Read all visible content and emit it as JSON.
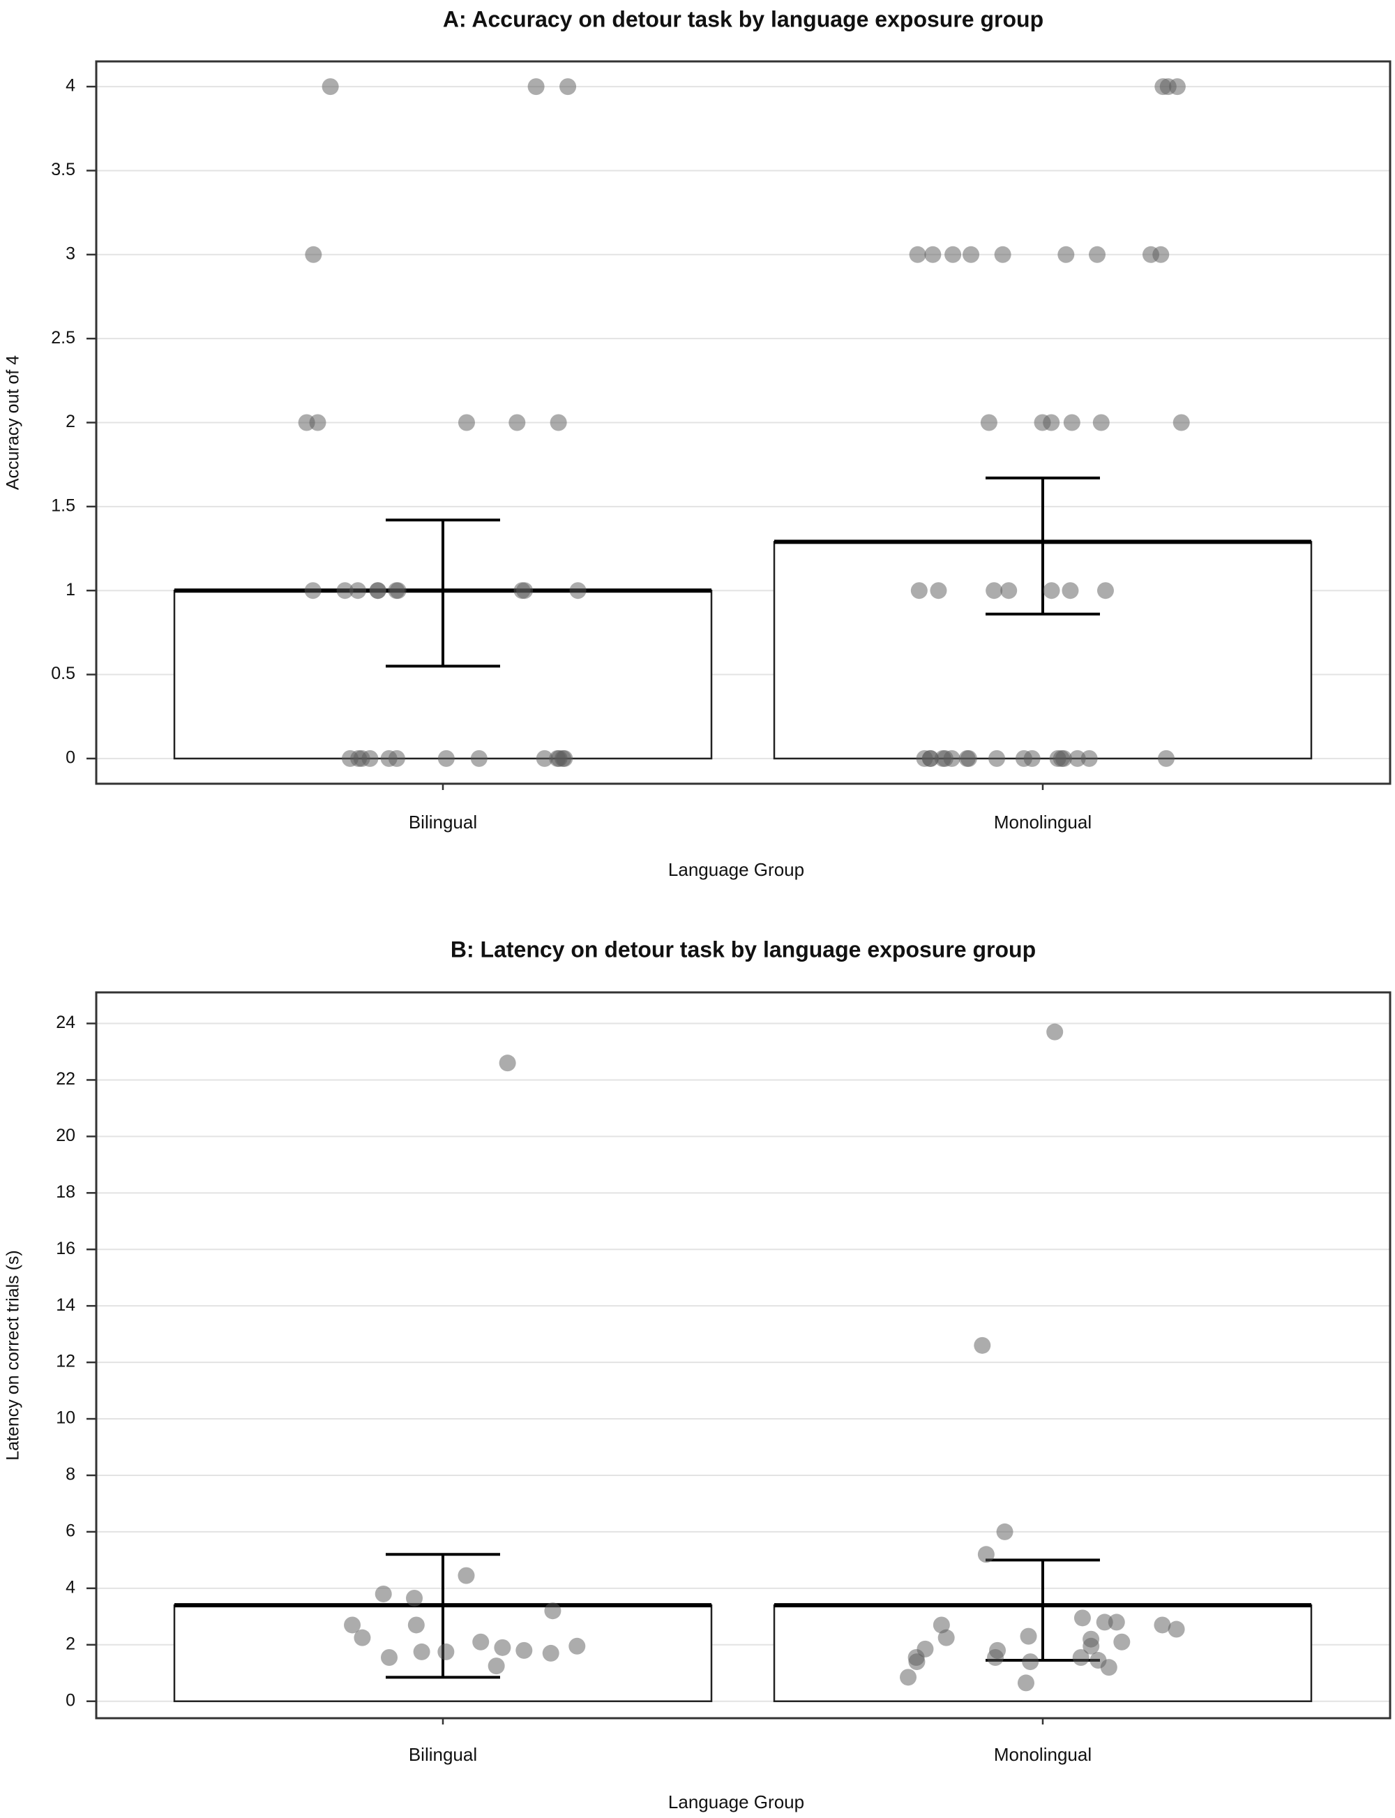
{
  "chart_data": [
    {
      "type": "bar",
      "title": "A: Accuracy on detour task by language exposure group",
      "xlabel": "Language Group",
      "ylabel": "Accuracy out of 4",
      "categories": [
        "Bilingual",
        "Monolingual"
      ],
      "values": [
        1.0,
        1.29
      ],
      "error_bars": [
        [
          0.55,
          1.42
        ],
        [
          0.86,
          1.67
        ]
      ],
      "ylim": [
        -0.15,
        4.15
      ],
      "yticks": [
        "0",
        "0.5",
        "1",
        "1.5",
        "2",
        "2.5",
        "3",
        "3.5",
        "4"
      ],
      "ytick_values": [
        0,
        0.5,
        1,
        1.5,
        2,
        2.5,
        3,
        3.5,
        4
      ],
      "grid": true,
      "points": [
        {
          "group": "Bilingual",
          "values": [
            4,
            4,
            4,
            3,
            2,
            2,
            2,
            2,
            2,
            1,
            1,
            1,
            1,
            1,
            1,
            1,
            1,
            1,
            1,
            0,
            0,
            0,
            0,
            0,
            0,
            0,
            0,
            0,
            0,
            0,
            0,
            0
          ]
        },
        {
          "group": "Monolingual",
          "values": [
            4,
            4,
            4,
            3,
            3,
            3,
            3,
            3,
            3,
            3,
            3,
            3,
            2,
            2,
            2,
            2,
            2,
            2,
            1,
            1,
            1,
            1,
            1,
            1,
            1,
            0,
            0,
            0,
            0,
            0,
            0,
            0,
            0,
            0,
            0,
            0,
            0,
            0,
            0,
            0,
            0,
            0
          ]
        }
      ]
    },
    {
      "type": "bar",
      "title": "B: Latency on detour task by language exposure group",
      "xlabel": "Language Group",
      "ylabel": "Latency on correct trials (s)",
      "categories": [
        "Bilingual",
        "Monolingual"
      ],
      "values": [
        3.4,
        3.4
      ],
      "error_bars": [
        [
          0.85,
          5.2
        ],
        [
          1.45,
          5.0
        ]
      ],
      "ylim": [
        -0.6,
        25.1
      ],
      "yticks": [
        "0",
        "2",
        "4",
        "6",
        "8",
        "10",
        "12",
        "14",
        "16",
        "18",
        "20",
        "22",
        "24"
      ],
      "ytick_values": [
        0,
        2,
        4,
        6,
        8,
        10,
        12,
        14,
        16,
        18,
        20,
        22,
        24
      ],
      "grid": true,
      "points": [
        {
          "group": "Bilingual",
          "values": [
            22.6,
            4.45,
            3.65,
            3.8,
            3.2,
            2.7,
            2.7,
            2.1,
            1.7,
            1.95,
            1.75,
            1.9,
            1.25,
            2.25,
            1.55,
            1.75,
            1.8
          ]
        },
        {
          "group": "Monolingual",
          "values": [
            23.7,
            12.6,
            6.0,
            5.2,
            2.95,
            2.7,
            2.3,
            2.8,
            1.55,
            0.85,
            0.65,
            1.55,
            1.4,
            1.95,
            1.85,
            1.45,
            1.4,
            2.1,
            1.2,
            2.7,
            2.2,
            1.8,
            2.25,
            2.8,
            2.55,
            1.55
          ]
        }
      ]
    }
  ]
}
